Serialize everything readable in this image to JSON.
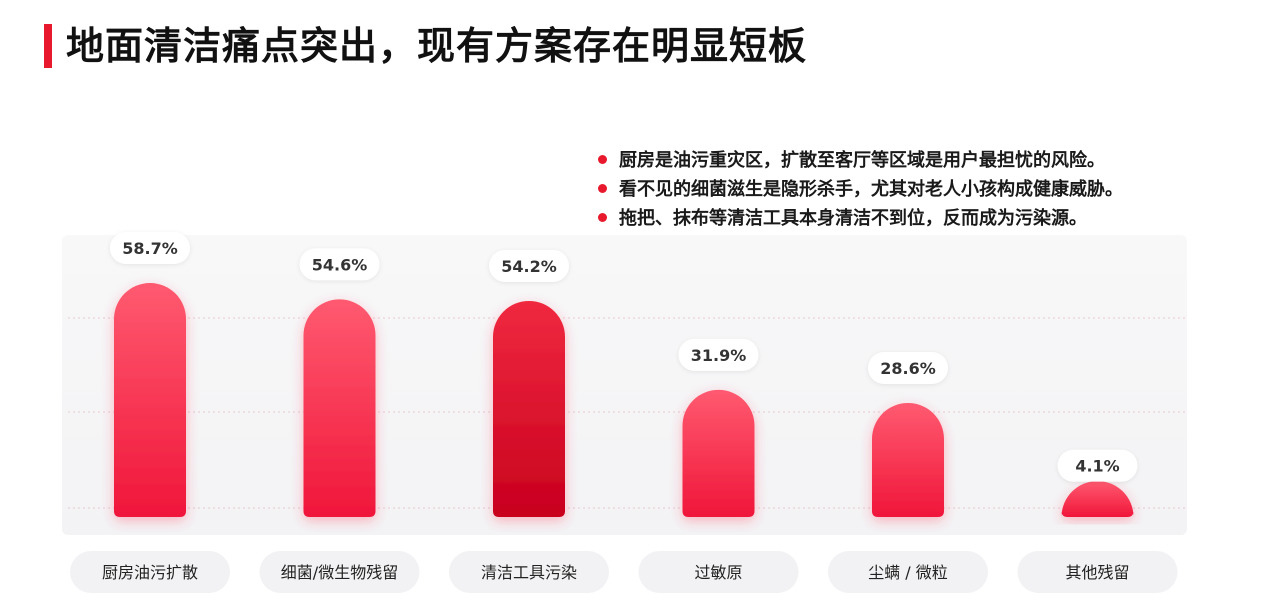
{
  "header": {
    "title": "地面清洁痛点突出，现有方案存在明显短板",
    "accent_color": "#e8192c"
  },
  "notes": [
    "厨房是油污重灾区，扩散至客厅等区域是用户最担忧的风险。",
    "看不见的细菌滋生是隐形杀手，尤其对老人小孩构成健康威胁。",
    "拖把、抹布等清洁工具本身清洁不到位，反而成为污染源。"
  ],
  "chart_data": {
    "type": "bar",
    "categories": [
      "厨房油污扩散",
      "细菌/微生物残留",
      "清洁工具污染",
      "过敏原",
      "尘螨 / 微粒",
      "其他残留"
    ],
    "values": [
      58.7,
      54.6,
      54.2,
      31.9,
      28.6,
      4.1
    ],
    "value_labels": [
      "58.7%",
      "54.6%",
      "54.2%",
      "31.9%",
      "28.6%",
      "4.1%"
    ],
    "highlight_index": 2,
    "ylim": [
      0,
      60
    ],
    "grid": true,
    "colors": {
      "bar_top": "#ff5a70",
      "bar_bottom": "#f0163a",
      "highlight_top": "#f0293f",
      "highlight_bottom": "#c8001e"
    }
  }
}
